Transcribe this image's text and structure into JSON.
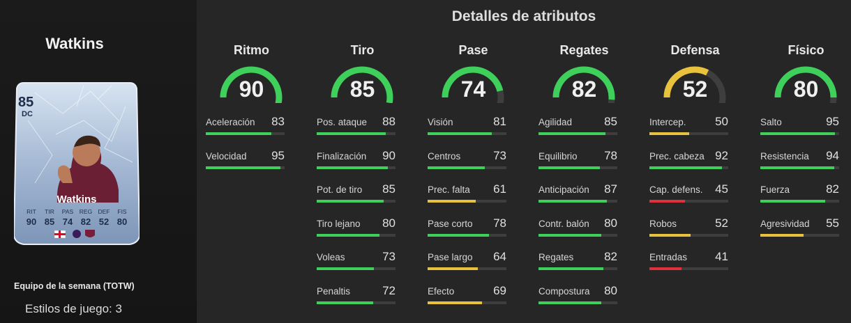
{
  "player": {
    "name": "Watkins",
    "rating": "85",
    "position": "DC",
    "card_name": "Watkins",
    "card_stat_labels": [
      "RIT",
      "TIR",
      "PAS",
      "REG",
      "DEF",
      "FIS"
    ],
    "card_stat_values": [
      "90",
      "85",
      "74",
      "82",
      "52",
      "80"
    ],
    "card_type": "Equipo de la semana (TOTW)",
    "playstyles": "Estilos de juego: 3"
  },
  "title": "Detalles de atributos",
  "colors": {
    "green": "#3fcf5b",
    "yellow": "#e8c13d",
    "red": "#e0303a",
    "track": "#3e3e3e"
  },
  "categories": [
    {
      "name": "Ritmo",
      "value": 90,
      "color": "green",
      "stats": [
        {
          "label": "Aceleración",
          "value": 83,
          "color": "green"
        },
        {
          "label": "Velocidad",
          "value": 95,
          "color": "green"
        }
      ]
    },
    {
      "name": "Tiro",
      "value": 85,
      "color": "green",
      "stats": [
        {
          "label": "Pos. ataque",
          "value": 88,
          "color": "green"
        },
        {
          "label": "Finalización",
          "value": 90,
          "color": "green"
        },
        {
          "label": "Pot. de tiro",
          "value": 85,
          "color": "green"
        },
        {
          "label": "Tiro lejano",
          "value": 80,
          "color": "green"
        },
        {
          "label": "Voleas",
          "value": 73,
          "color": "green"
        },
        {
          "label": "Penaltis",
          "value": 72,
          "color": "green"
        }
      ]
    },
    {
      "name": "Pase",
      "value": 74,
      "color": "green",
      "stats": [
        {
          "label": "Visión",
          "value": 81,
          "color": "green"
        },
        {
          "label": "Centros",
          "value": 73,
          "color": "green"
        },
        {
          "label": "Prec. falta",
          "value": 61,
          "color": "yellow"
        },
        {
          "label": "Pase corto",
          "value": 78,
          "color": "green"
        },
        {
          "label": "Pase largo",
          "value": 64,
          "color": "yellow"
        },
        {
          "label": "Efecto",
          "value": 69,
          "color": "yellow"
        }
      ]
    },
    {
      "name": "Regates",
      "value": 82,
      "color": "green",
      "stats": [
        {
          "label": "Agilidad",
          "value": 85,
          "color": "green"
        },
        {
          "label": "Equilibrio",
          "value": 78,
          "color": "green"
        },
        {
          "label": "Anticipación",
          "value": 87,
          "color": "green"
        },
        {
          "label": "Contr. balón",
          "value": 80,
          "color": "green"
        },
        {
          "label": "Regates",
          "value": 82,
          "color": "green"
        },
        {
          "label": "Compostura",
          "value": 80,
          "color": "green"
        }
      ]
    },
    {
      "name": "Defensa",
      "value": 52,
      "color": "yellow",
      "stats": [
        {
          "label": "Intercep.",
          "value": 50,
          "color": "yellow"
        },
        {
          "label": "Prec. cabeza",
          "value": 92,
          "color": "green"
        },
        {
          "label": "Cap. defens.",
          "value": 45,
          "color": "red"
        },
        {
          "label": "Robos",
          "value": 52,
          "color": "yellow"
        },
        {
          "label": "Entradas",
          "value": 41,
          "color": "red"
        }
      ]
    },
    {
      "name": "Físico",
      "value": 80,
      "color": "green",
      "stats": [
        {
          "label": "Salto",
          "value": 95,
          "color": "green"
        },
        {
          "label": "Resistencia",
          "value": 94,
          "color": "green"
        },
        {
          "label": "Fuerza",
          "value": 82,
          "color": "green"
        },
        {
          "label": "Agresividad",
          "value": 55,
          "color": "yellow"
        }
      ]
    }
  ]
}
